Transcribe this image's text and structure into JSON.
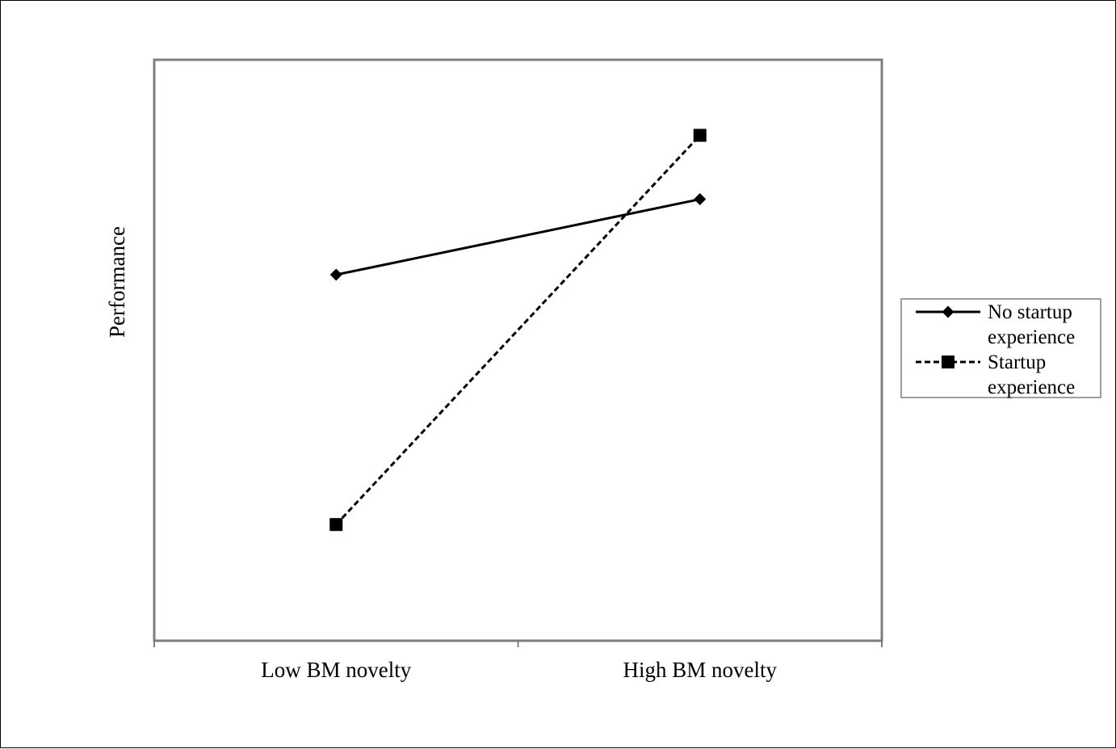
{
  "chart_data": {
    "type": "line",
    "categories": [
      "Low BM novelty",
      "High BM novelty"
    ],
    "ylabel": "Performance",
    "xlabel": "",
    "ylim": [
      0,
      10
    ],
    "grid": false,
    "legend_position": "right",
    "series": [
      {
        "name_lines": [
          "No startup",
          "experience"
        ],
        "values": [
          6.3,
          7.6
        ],
        "line_style": "solid",
        "marker": "diamond",
        "color": "#000000"
      },
      {
        "name_lines": [
          "Startup",
          "experience"
        ],
        "values": [
          2.0,
          8.7
        ],
        "line_style": "dashed",
        "marker": "square",
        "color": "#000000"
      }
    ]
  }
}
